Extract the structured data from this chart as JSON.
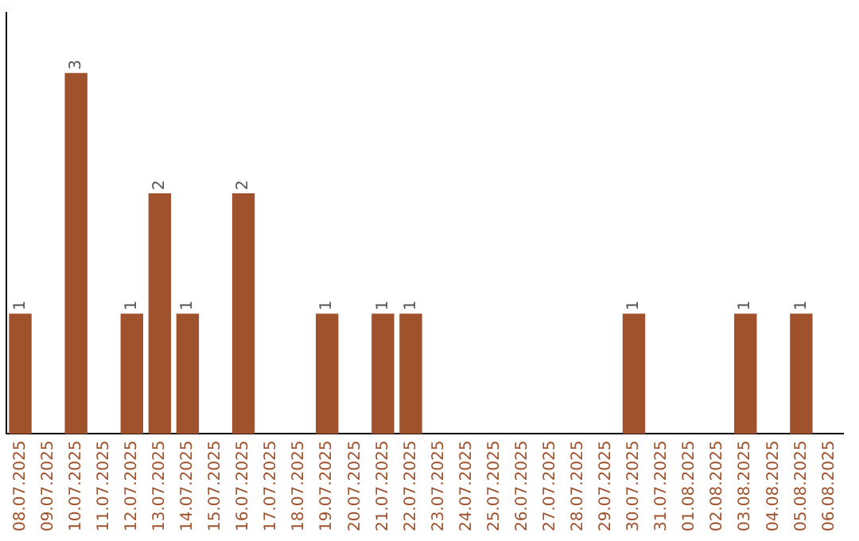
{
  "chart_data": {
    "type": "bar",
    "categories": [
      "08.07.2025",
      "09.07.2025",
      "10.07.2025",
      "11.07.2025",
      "12.07.2025",
      "13.07.2025",
      "14.07.2025",
      "15.07.2025",
      "16.07.2025",
      "17.07.2025",
      "18.07.2025",
      "19.07.2025",
      "20.07.2025",
      "21.07.2025",
      "22.07.2025",
      "23.07.2025",
      "24.07.2025",
      "25.07.2025",
      "26.07.2025",
      "27.07.2025",
      "28.07.2025",
      "29.07.2025",
      "30.07.2025",
      "31.07.2025",
      "01.08.2025",
      "02.08.2025",
      "03.08.2025",
      "04.08.2025",
      "05.08.2025",
      "06.08.2025"
    ],
    "values": [
      1,
      0,
      3,
      0,
      1,
      2,
      1,
      0,
      2,
      0,
      0,
      1,
      0,
      1,
      1,
      0,
      0,
      0,
      0,
      0,
      0,
      0,
      1,
      0,
      0,
      0,
      1,
      0,
      1,
      0
    ],
    "value_labels": [
      "1",
      null,
      "3",
      null,
      "1",
      "2",
      "1",
      null,
      "2",
      null,
      null,
      "1",
      null,
      "1",
      "1",
      null,
      null,
      null,
      null,
      null,
      null,
      null,
      "1",
      null,
      null,
      null,
      "1",
      null,
      "1",
      null
    ],
    "color": "#a0522d",
    "grid": false,
    "legend": false,
    "tick_labels": "x"
  }
}
